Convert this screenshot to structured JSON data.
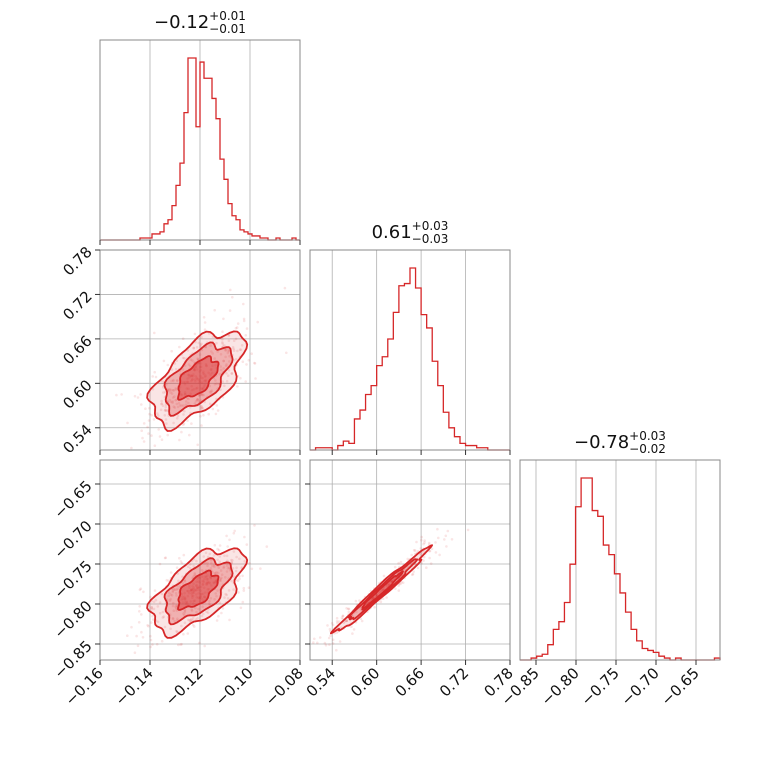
{
  "chart_data": {
    "type": "corner",
    "color": "#d62728",
    "parameters": [
      {
        "range": [
          -0.16,
          -0.08
        ],
        "ticks": [
          -0.16,
          -0.14,
          -0.12,
          -0.1,
          -0.08
        ],
        "tick_labels": [
          "−0.16",
          "−0.14",
          "−0.12",
          "−0.10",
          "−0.08"
        ],
        "title": {
          "value": "−0.12",
          "plus": "+0.01",
          "minus": "−0.01"
        },
        "hist": [
          0,
          0,
          0,
          0,
          0,
          0,
          0,
          0,
          0,
          0,
          1,
          1,
          1,
          3,
          3,
          4,
          8,
          10,
          17,
          27,
          38,
          63,
          90,
          90,
          56,
          88,
          80,
          80,
          70,
          60,
          40,
          30,
          18,
          12,
          10,
          5,
          4,
          3,
          2,
          2,
          1,
          1,
          0,
          0,
          1,
          0,
          0,
          0,
          1,
          0
        ]
      },
      {
        "range": [
          0.51,
          0.78
        ],
        "ticks": [
          0.54,
          0.6,
          0.66,
          0.72,
          0.78
        ],
        "tick_labels": [
          "0.54",
          "0.60",
          "0.66",
          "0.72",
          "0.78"
        ],
        "title": {
          "value": "0.61",
          "plus": "+0.03",
          "minus": "−0.03"
        },
        "hist": [
          0,
          1,
          1,
          1,
          0,
          2,
          4,
          3,
          14,
          18,
          25,
          29,
          38,
          42,
          50,
          62,
          74,
          75,
          82,
          73,
          61,
          55,
          40,
          29,
          17,
          10,
          6,
          3,
          2,
          2,
          1,
          1,
          0,
          0,
          0,
          0
        ]
      },
      {
        "range": [
          -0.87,
          -0.62
        ],
        "ticks": [
          -0.85,
          -0.8,
          -0.75,
          -0.7,
          -0.65
        ],
        "tick_labels": [
          "−0.85",
          "−0.80",
          "−0.75",
          "−0.70",
          "−0.65"
        ],
        "title": {
          "value": "−0.78",
          "plus": "+0.03",
          "minus": "−0.02"
        },
        "hist": [
          0,
          0,
          1,
          2,
          3,
          8,
          16,
          20,
          30,
          50,
          80,
          95,
          95,
          78,
          75,
          60,
          55,
          45,
          35,
          25,
          16,
          10,
          6,
          5,
          4,
          2,
          1,
          0,
          1,
          0,
          0,
          0,
          0,
          0,
          0,
          1
        ]
      }
    ],
    "y_ticks": {
      "row1": {
        "ticks": [
          0.54,
          0.6,
          0.66,
          0.72,
          0.78
        ],
        "labels": [
          "0.54",
          "0.60",
          "0.66",
          "0.72",
          "0.78"
        ]
      },
      "row2": {
        "ticks": [
          -0.85,
          -0.8,
          -0.75,
          -0.7,
          -0.65
        ],
        "labels": [
          "−0.85",
          "−0.80",
          "−0.75",
          "−0.70",
          "−0.65"
        ]
      }
    },
    "pairs": {
      "p0_p1": {
        "mean": [
          -0.121,
          0.607
        ],
        "sd": [
          0.0088,
          0.03
        ],
        "rho": 0.6
      },
      "p0_p2": {
        "mean": [
          -0.121,
          -0.783
        ],
        "sd": [
          0.0088,
          0.025
        ],
        "rho": 0.6
      },
      "p1_p2": {
        "mean": [
          0.607,
          -0.783
        ],
        "sd": [
          0.03,
          0.025
        ],
        "rho": 0.985
      }
    }
  }
}
